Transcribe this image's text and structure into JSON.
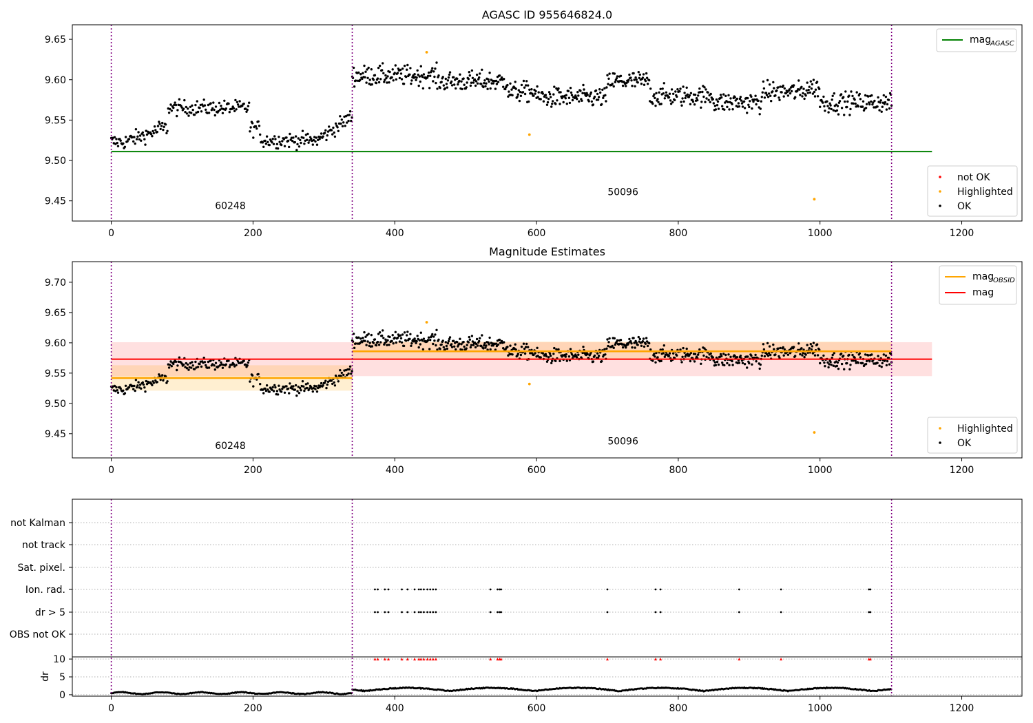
{
  "chart_data": [
    {
      "type": "scatter",
      "title": "AGASC ID 955646824.0",
      "xlim": [
        -55,
        1285
      ],
      "ylim": [
        9.425,
        9.668
      ],
      "xticks": [
        0,
        200,
        400,
        600,
        800,
        1000,
        1200
      ],
      "yticks": [
        9.45,
        9.5,
        9.55,
        9.6,
        9.65
      ],
      "ytick_labels": [
        "9.45",
        "9.50",
        "9.55",
        "9.60",
        "9.65"
      ],
      "observation_bounds": [
        0,
        340,
        1101
      ],
      "obsid_labels": [
        {
          "text": "60248",
          "x": 168,
          "y": 9.44
        },
        {
          "text": "50096",
          "x": 722,
          "y": 9.457
        }
      ],
      "hlines": [
        {
          "name": "mag_AGASC",
          "y": 9.511,
          "x_range": [
            0,
            1158
          ],
          "color": "#008000"
        }
      ],
      "legend_lines": {
        "entries": [
          {
            "label": "mag",
            "sub": "AGASC",
            "color": "#008000"
          }
        ],
        "position": "upper right"
      },
      "legend_points": {
        "entries": [
          {
            "label": "not OK",
            "color": "#ff0000"
          },
          {
            "label": "Highlighted",
            "color": "#ffa500"
          },
          {
            "label": "OK",
            "color": "#000000"
          }
        ],
        "position": "lower right"
      },
      "highlighted": [
        {
          "x": 445,
          "y": 9.634
        },
        {
          "x": 590,
          "y": 9.532
        },
        {
          "x": 992,
          "y": 9.452
        }
      ]
    },
    {
      "type": "scatter",
      "title": "Magnitude Estimates",
      "xlim": [
        -55,
        1285
      ],
      "ylim": [
        9.41,
        9.734
      ],
      "xticks": [
        0,
        200,
        400,
        600,
        800,
        1000,
        1200
      ],
      "yticks": [
        9.45,
        9.5,
        9.55,
        9.6,
        9.65,
        9.7
      ],
      "ytick_labels": [
        "9.45",
        "9.50",
        "9.55",
        "9.60",
        "9.65",
        "9.70"
      ],
      "observation_bounds": [
        0,
        340,
        1101
      ],
      "obsid_labels": [
        {
          "text": "60248",
          "x": 168,
          "y": 9.425
        },
        {
          "text": "50096",
          "x": 722,
          "y": 9.432
        }
      ],
      "mag": {
        "y": 9.573,
        "band": [
          9.545,
          9.601
        ],
        "x_range": [
          0,
          1158
        ],
        "color": "#ff0000"
      },
      "mag_obsid": [
        {
          "x_range": [
            0,
            340
          ],
          "y": 9.542,
          "band": [
            9.521,
            9.563
          ]
        },
        {
          "x_range": [
            340,
            1101
          ],
          "y": 9.586,
          "band": [
            9.572,
            9.602
          ]
        }
      ],
      "legend_lines": {
        "entries": [
          {
            "label": "mag",
            "sub": "OBSID",
            "color": "#ffa500"
          },
          {
            "label": "mag",
            "sub": "",
            "color": "#ff0000"
          }
        ],
        "position": "upper right"
      },
      "legend_points": {
        "entries": [
          {
            "label": "Highlighted",
            "color": "#ffa500"
          },
          {
            "label": "OK",
            "color": "#000000"
          }
        ],
        "position": "lower right"
      },
      "highlighted": [
        {
          "x": 445,
          "y": 9.634
        },
        {
          "x": 590,
          "y": 9.532
        },
        {
          "x": 992,
          "y": 9.452
        }
      ]
    },
    {
      "type": "scatter",
      "title": "",
      "xlim": [
        -55,
        1285
      ],
      "xticks": [
        0,
        200,
        400,
        600,
        800,
        1000,
        1200
      ],
      "flag_categories": [
        "not Kalman",
        "not track",
        "Sat. pixel.",
        "Ion. rad.",
        "dr > 5",
        "OBS not OK"
      ],
      "flag_points": {
        "Ion. rad.": [
          372,
          376,
          386,
          391,
          410,
          418,
          428,
          434,
          437,
          441,
          446,
          450,
          454,
          458,
          535,
          545,
          548,
          550,
          700,
          768,
          775,
          886,
          945,
          1069,
          1071
        ],
        "dr > 5": [
          372,
          376,
          386,
          391,
          410,
          418,
          428,
          434,
          437,
          441,
          446,
          450,
          454,
          458,
          535,
          545,
          548,
          550,
          700,
          768,
          775,
          886,
          945,
          1069,
          1071
        ]
      },
      "dr_ylim": [
        -0.4,
        10.6
      ],
      "dr_yticks": [
        0,
        5,
        10
      ],
      "dr_ylabel": "dr",
      "dr_clipped_x": [
        372,
        376,
        386,
        391,
        410,
        418,
        428,
        434,
        437,
        441,
        446,
        450,
        454,
        458,
        535,
        545,
        548,
        550,
        700,
        768,
        775,
        886,
        945,
        1069,
        1071
      ]
    }
  ],
  "colors": {
    "ok": "#000000",
    "highlighted": "#ffa500",
    "not_ok": "#ff0000",
    "mag_agasc": "#008000",
    "mag": "#ff0000",
    "mag_obsid": "#ffa500",
    "obs_boundary": "#800080"
  }
}
